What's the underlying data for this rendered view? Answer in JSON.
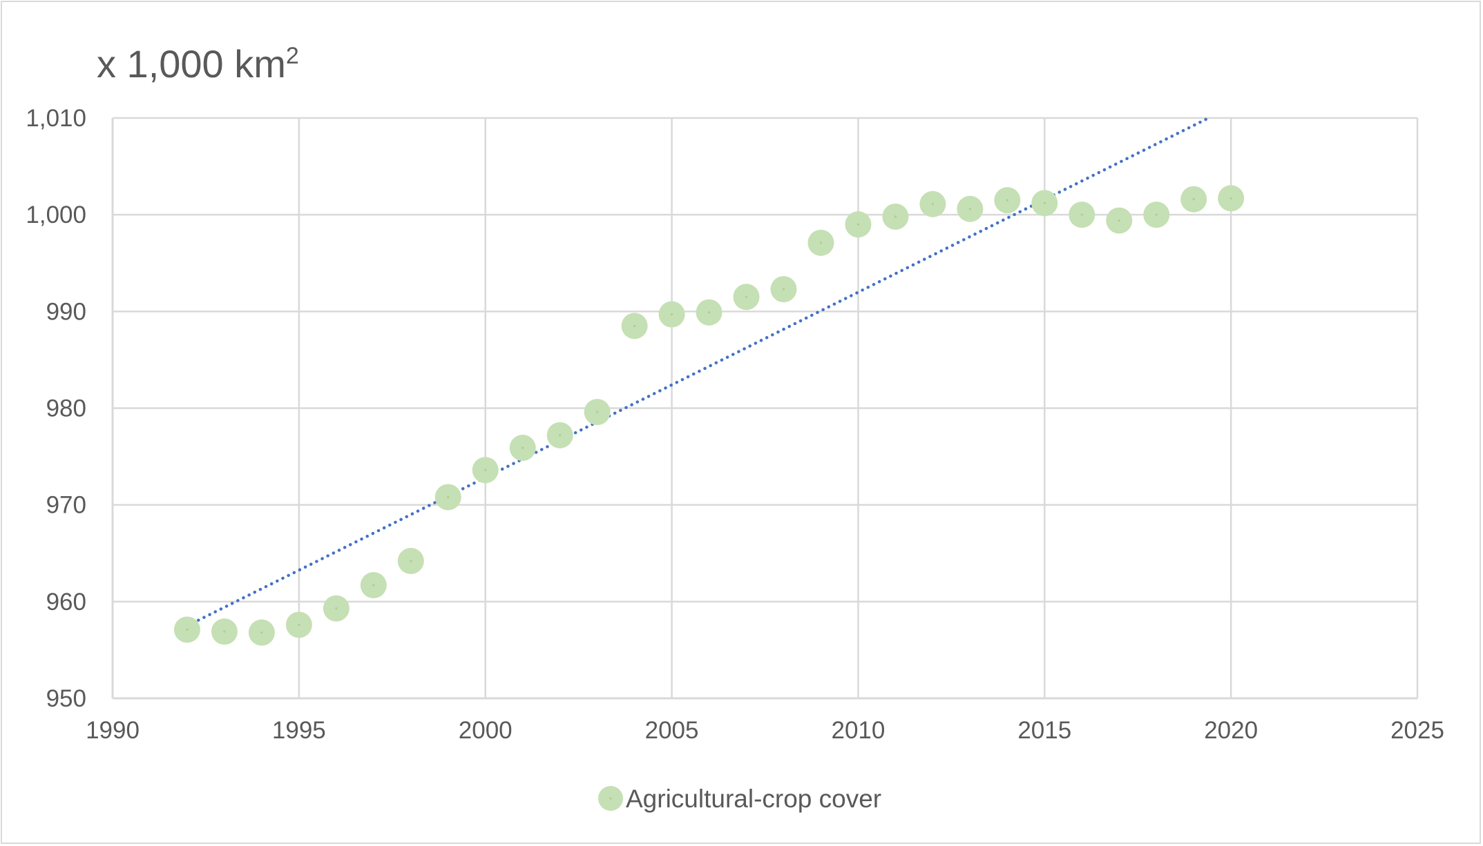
{
  "chart_data": {
    "type": "scatter",
    "title": "x 1,000 km²",
    "title_main": "x 1,000 km",
    "title_sup": "2",
    "xlabel": "",
    "ylabel": "",
    "xlim": [
      1990,
      2025
    ],
    "ylim": [
      950,
      1010
    ],
    "x_ticks": [
      1990,
      1995,
      2000,
      2005,
      2010,
      2015,
      2020,
      2025
    ],
    "y_ticks": [
      950,
      960,
      970,
      980,
      990,
      1000,
      1010
    ],
    "x_tick_labels": [
      "1990",
      "1995",
      "2000",
      "2005",
      "2010",
      "2015",
      "2020",
      "2025"
    ],
    "y_tick_labels": [
      "950",
      "960",
      "970",
      "980",
      "990",
      "1,000",
      "1,010"
    ],
    "grid": true,
    "legend_position": "bottom",
    "series": [
      {
        "name": "Agricultural-crop cover",
        "color": "#c5e0b4",
        "marker": "circle",
        "x": [
          1992,
          1993,
          1994,
          1995,
          1996,
          1997,
          1998,
          1999,
          2000,
          2001,
          2002,
          2003,
          2004,
          2005,
          2006,
          2007,
          2008,
          2009,
          2010,
          2011,
          2012,
          2013,
          2014,
          2015,
          2016,
          2017,
          2018,
          2019,
          2020
        ],
        "y": [
          957.1,
          956.9,
          956.8,
          957.6,
          959.3,
          961.7,
          964.2,
          970.8,
          973.6,
          975.9,
          977.2,
          979.6,
          988.5,
          989.7,
          989.9,
          991.5,
          992.3,
          997.1,
          999.0,
          999.8,
          1001.1,
          1000.6,
          1001.5,
          1001.2,
          1000.0,
          999.4,
          1000.0,
          1001.6,
          1001.7
        ]
      }
    ],
    "trendline": {
      "type": "linear",
      "style": "dotted",
      "color": "#4472c4",
      "x_start": 1992,
      "y_start": 957.5,
      "x_end": 2019.4,
      "y_end": 1010
    }
  }
}
